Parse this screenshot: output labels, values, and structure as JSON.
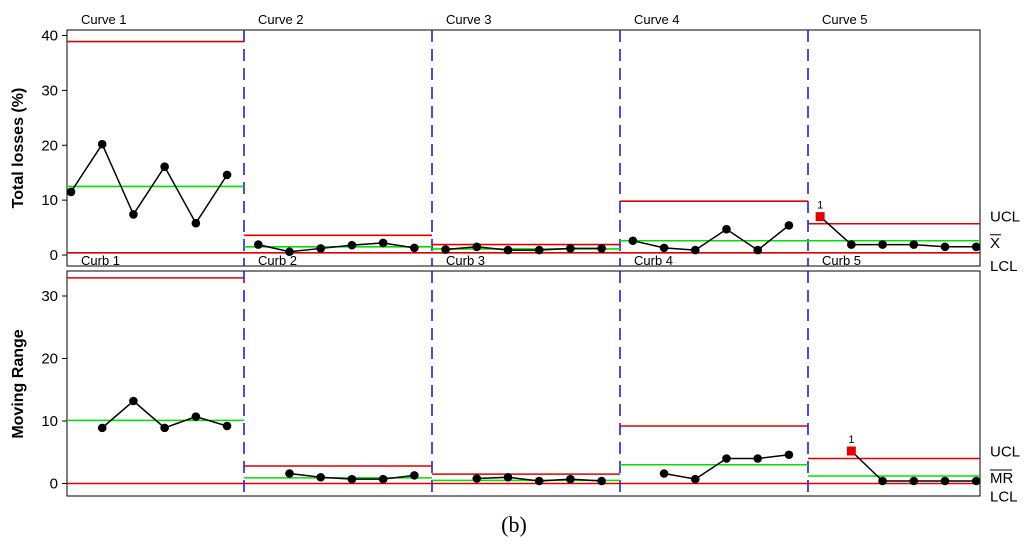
{
  "caption": "(b)",
  "limit_labels": {
    "top": {
      "ucl": "UCL",
      "center": "X",
      "lcl": "LCL"
    },
    "bottom": {
      "ucl": "UCL",
      "center": "MR",
      "lcl": "LCL"
    }
  },
  "colors": {
    "data_line": "#000000",
    "limit_line": "#e00000",
    "center_line": "#00e000",
    "stage_divider": "#1f1fdc",
    "flagged_point": "#e00000"
  },
  "chart_data": [
    {
      "type": "line",
      "subtype": "I-chart by stages",
      "ylabel": "Total losses (%)",
      "ylim": [
        -2,
        41
      ],
      "yticks": [
        0,
        10,
        20,
        30,
        40
      ],
      "x": [
        1,
        2,
        3,
        4,
        5,
        6,
        7,
        8,
        9,
        10,
        11,
        12,
        13,
        14,
        15,
        16,
        17,
        18,
        19,
        20,
        21,
        22,
        23,
        24,
        25,
        26,
        27,
        28,
        29,
        30
      ],
      "stages": [
        {
          "name": "Curve 1",
          "values": [
            11.5,
            20.2,
            7.4,
            16.1,
            5.8,
            14.6
          ],
          "ucl": 38.9,
          "center": 12.5,
          "lcl": 0.4
        },
        {
          "name": "Curve 2",
          "values": [
            1.9,
            0.6,
            1.2,
            1.8,
            2.2,
            1.3
          ],
          "ucl": 3.6,
          "center": 1.5,
          "lcl": 0.4
        },
        {
          "name": "Curve 3",
          "values": [
            1.0,
            1.5,
            0.9,
            0.9,
            1.2,
            1.2
          ],
          "ucl": 1.9,
          "center": 1.1,
          "lcl": 0.4
        },
        {
          "name": "Curve 4",
          "values": [
            2.6,
            1.3,
            0.9,
            4.7,
            0.9,
            5.4
          ],
          "ucl": 9.8,
          "center": 2.6,
          "lcl": 0.4
        },
        {
          "name": "Curve 5",
          "values": [
            7.0,
            1.9,
            1.9,
            1.9,
            1.5,
            1.5
          ],
          "ucl": 5.7,
          "center": 2.6,
          "lcl": 0.4
        }
      ],
      "flagged_points": [
        {
          "x": 25,
          "value": 7.0,
          "label": "1"
        }
      ]
    },
    {
      "type": "line",
      "subtype": "Moving range chart by stages",
      "ylabel": "Moving Range",
      "ylim": [
        -2,
        34
      ],
      "yticks": [
        0,
        10,
        20,
        30
      ],
      "x": [
        1,
        2,
        3,
        4,
        5,
        6,
        7,
        8,
        9,
        10,
        11,
        12,
        13,
        14,
        15,
        16,
        17,
        18,
        19,
        20,
        21,
        22,
        23,
        24,
        25,
        26,
        27,
        28,
        29,
        30
      ],
      "stages": [
        {
          "name": "Curb 1",
          "values": [
            null,
            8.9,
            13.2,
            8.9,
            10.7,
            9.2
          ],
          "ucl": 32.9,
          "center": 10.1,
          "lcl": 0
        },
        {
          "name": "Curb 2",
          "values": [
            null,
            1.6,
            1.0,
            0.7,
            0.7,
            1.3
          ],
          "ucl": 2.8,
          "center": 0.9,
          "lcl": 0
        },
        {
          "name": "Curb 3",
          "values": [
            null,
            0.8,
            1.0,
            0.4,
            0.7,
            0.4
          ],
          "ucl": 1.5,
          "center": 0.5,
          "lcl": 0
        },
        {
          "name": "Curb 4",
          "values": [
            null,
            1.6,
            0.7,
            4.0,
            4.0,
            4.6
          ],
          "ucl": 9.2,
          "center": 3.0,
          "lcl": 0
        },
        {
          "name": "Curb 5",
          "values": [
            null,
            5.2,
            0.4,
            0.4,
            0.4,
            0.4
          ],
          "ucl": 4.0,
          "center": 1.2,
          "lcl": 0
        }
      ],
      "flagged_points": [
        {
          "x": 26,
          "value": 5.2,
          "label": "1"
        }
      ]
    }
  ]
}
